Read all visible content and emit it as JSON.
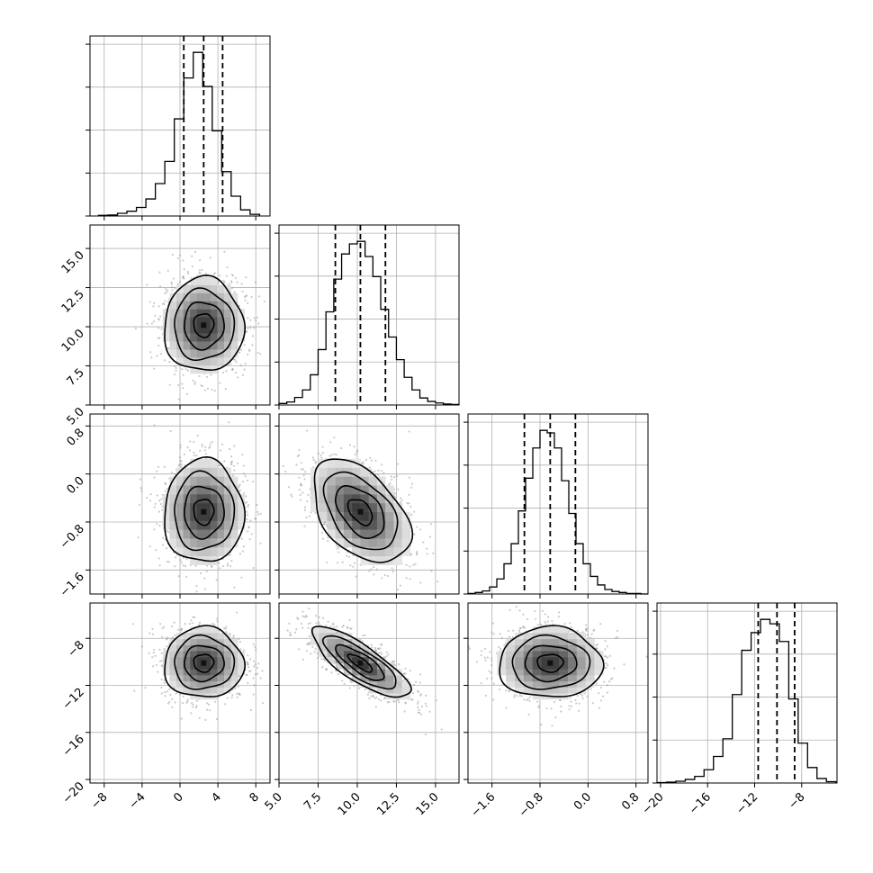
{
  "figure": {
    "type": "corner_plot",
    "parameters": 4
  },
  "chart_data": [
    {
      "type": "histogram",
      "panel": "hist-p1",
      "x_ticks": [
        "−8",
        "−4",
        "0",
        "4",
        "8"
      ],
      "xlim": [
        -9.5,
        9.5
      ],
      "bin_edges": [
        -8.6,
        -7.6,
        -6.6,
        -5.6,
        -4.6,
        -3.6,
        -2.6,
        -1.6,
        -0.6,
        0.4,
        1.4,
        2.4,
        3.4,
        4.4,
        5.4,
        6.4,
        7.4,
        8.4
      ],
      "counts": [
        2,
        3,
        8,
        14,
        25,
        50,
        95,
        160,
        285,
        405,
        480,
        380,
        250,
        130,
        58,
        18,
        5
      ],
      "quantiles": [
        0.4,
        2.5,
        4.5
      ]
    },
    {
      "type": "histogram",
      "panel": "hist-p2",
      "x_ticks": [
        "5.0",
        "7.5",
        "10.0",
        "12.5",
        "15.0"
      ],
      "xlim": [
        5.0,
        16.5
      ],
      "bin_edges": [
        5.0,
        5.5,
        6.0,
        6.5,
        7.0,
        7.5,
        8.0,
        8.5,
        9.0,
        9.5,
        10.0,
        10.5,
        11.0,
        11.5,
        12.0,
        12.5,
        13.0,
        13.5,
        14.0,
        14.5,
        15.0,
        15.5,
        16.0,
        16.5
      ],
      "counts": [
        3,
        6,
        15,
        30,
        60,
        110,
        185,
        250,
        300,
        320,
        325,
        295,
        255,
        190,
        135,
        90,
        55,
        30,
        14,
        7,
        4,
        2,
        1
      ],
      "quantiles": [
        8.6,
        10.2,
        11.8
      ]
    },
    {
      "type": "histogram",
      "panel": "hist-p3",
      "x_ticks": [
        "−1.6",
        "−0.8",
        "0.0",
        "0.8"
      ],
      "xlim": [
        -2.0,
        1.0
      ],
      "bin_edges": [
        -2.0,
        -1.88,
        -1.76,
        -1.64,
        -1.52,
        -1.4,
        -1.28,
        -1.16,
        -1.04,
        -0.92,
        -0.8,
        -0.68,
        -0.56,
        -0.44,
        -0.32,
        -0.2,
        -0.08,
        0.04,
        0.16,
        0.28,
        0.4,
        0.52,
        0.64,
        0.76,
        0.88,
        1.0
      ],
      "counts": [
        1,
        3,
        6,
        14,
        30,
        60,
        100,
        165,
        230,
        290,
        325,
        320,
        290,
        225,
        160,
        100,
        60,
        35,
        18,
        9,
        5,
        3,
        1,
        1,
        0
      ],
      "quantiles": [
        -1.06,
        -0.63,
        -0.21
      ]
    },
    {
      "type": "histogram",
      "panel": "hist-p4",
      "x_ticks": [
        "−20",
        "−16",
        "−12",
        "−8"
      ],
      "xlim": [
        -20.3,
        -5.0
      ],
      "bin_edges": [
        -20.3,
        -19.5,
        -18.7,
        -17.9,
        -17.1,
        -16.3,
        -15.5,
        -14.7,
        -13.9,
        -13.1,
        -12.3,
        -11.5,
        -10.7,
        -9.9,
        -9.1,
        -8.3,
        -7.5,
        -6.7,
        -5.9,
        -5.1
      ],
      "counts": [
        1,
        2,
        4,
        8,
        15,
        30,
        60,
        100,
        200,
        300,
        340,
        370,
        360,
        320,
        190,
        90,
        35,
        10,
        3
      ],
      "quantiles": [
        -11.7,
        -10.1,
        -8.6
      ]
    },
    {
      "type": "density2d",
      "panel": "p1-p2",
      "xvar": 1,
      "yvar": 2,
      "xlim": [
        -9.5,
        9.5
      ],
      "ylim": [
        5.0,
        16.5
      ],
      "y_ticks": [
        "5.0",
        "7.5",
        "10.0",
        "12.5",
        "15.0"
      ],
      "mean": [
        2.5,
        10.1
      ],
      "sd": [
        2.1,
        1.5
      ],
      "rho": 0.0
    },
    {
      "type": "density2d",
      "panel": "p1-p3",
      "xvar": 1,
      "yvar": 3,
      "xlim": [
        -9.5,
        9.5
      ],
      "ylim": [
        -2.0,
        1.0
      ],
      "y_ticks": [
        "−1.6",
        "−0.8",
        "0.0",
        "0.8"
      ],
      "mean": [
        2.5,
        -0.63
      ],
      "sd": [
        2.1,
        0.43
      ],
      "rho": 0.0
    },
    {
      "type": "density2d",
      "panel": "p2-p3",
      "xvar": 2,
      "yvar": 3,
      "xlim": [
        5.0,
        16.5
      ],
      "ylim": [
        -2.0,
        1.0
      ],
      "mean": [
        10.2,
        -0.63
      ],
      "sd": [
        1.55,
        0.43
      ],
      "rho": -0.45
    },
    {
      "type": "density2d",
      "panel": "p1-p4",
      "xvar": 1,
      "yvar": 4,
      "xlim": [
        -9.5,
        9.5
      ],
      "ylim": [
        -20.3,
        -5.0
      ],
      "y_ticks": [
        "−20",
        "−16",
        "−12",
        "−8"
      ],
      "mean": [
        2.5,
        -10.1
      ],
      "sd": [
        2.1,
        1.5
      ],
      "rho": 0.0
    },
    {
      "type": "density2d",
      "panel": "p2-p4",
      "xvar": 2,
      "yvar": 4,
      "xlim": [
        5.0,
        16.5
      ],
      "ylim": [
        -20.3,
        -5.0
      ],
      "mean": [
        10.2,
        -10.1
      ],
      "sd": [
        1.55,
        1.5
      ],
      "rho": -0.8
    },
    {
      "type": "density2d",
      "panel": "p3-p4",
      "xvar": 3,
      "yvar": 4,
      "xlim": [
        -2.0,
        1.0
      ],
      "ylim": [
        -20.3,
        -5.0
      ],
      "mean": [
        -0.63,
        -10.1
      ],
      "sd": [
        0.43,
        1.5
      ],
      "rho": 0.0
    }
  ],
  "style": {
    "ink": "#000000",
    "grid": "#b0b0b0",
    "points": "#8c8c8c"
  }
}
